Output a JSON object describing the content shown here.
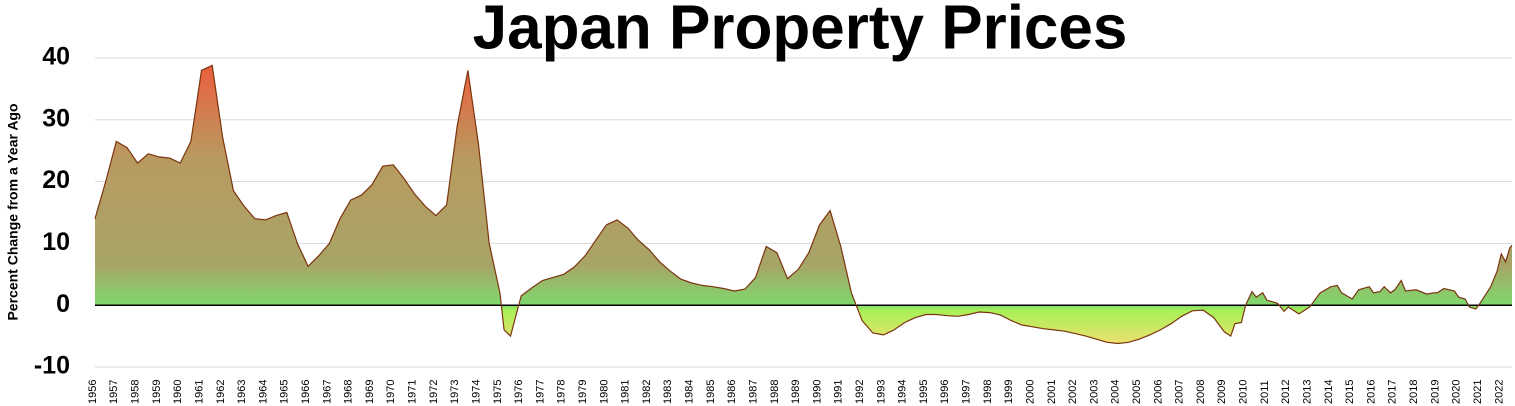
{
  "chart_data": {
    "type": "area",
    "title": "Japan Property Prices",
    "ylabel": "Percent Change from a Year Ago",
    "x": [
      1956,
      1956.5,
      1957,
      1957.5,
      1958,
      1958.5,
      1959,
      1959.5,
      1960,
      1960.5,
      1961,
      1961.5,
      1962,
      1962.5,
      1963,
      1963.5,
      1964,
      1964.5,
      1965,
      1965.5,
      1966,
      1966.5,
      1967,
      1967.5,
      1968,
      1968.5,
      1969,
      1969.5,
      1970,
      1970.5,
      1971,
      1971.5,
      1972,
      1972.5,
      1973,
      1973.5,
      1974,
      1974.5,
      1975,
      1975.2,
      1975.5,
      1976,
      1976.5,
      1977,
      1977.5,
      1978,
      1978.5,
      1979,
      1979.5,
      1980,
      1980.5,
      1981,
      1981.5,
      1982,
      1982.5,
      1983,
      1983.5,
      1984,
      1984.5,
      1985,
      1985.5,
      1986,
      1986.5,
      1987,
      1987.5,
      1988,
      1988.5,
      1989,
      1989.5,
      1990,
      1990.5,
      1991,
      1991.5,
      1992,
      1992.5,
      1993,
      1993.5,
      1994,
      1994.5,
      1995,
      1995.5,
      1996,
      1996.5,
      1997,
      1997.5,
      1998,
      1998.5,
      1999,
      1999.5,
      2000,
      2000.5,
      2001,
      2001.5,
      2002,
      2002.5,
      2003,
      2003.5,
      2004,
      2004.5,
      2005,
      2005.5,
      2006,
      2006.5,
      2007,
      2007.5,
      2008,
      2008.5,
      2009,
      2009.3,
      2009.5,
      2009.8,
      2010,
      2010.3,
      2010.5,
      2010.8,
      2011,
      2011.5,
      2011.8,
      2012,
      2012.5,
      2013,
      2013.5,
      2014,
      2014.3,
      2014.5,
      2015,
      2015.3,
      2015.8,
      2016,
      2016.3,
      2016.5,
      2016.8,
      2017,
      2017.3,
      2017.5,
      2018,
      2018.5,
      2018.8,
      2019,
      2019.3,
      2019.8,
      2020,
      2020.3,
      2020.5,
      2020.8,
      2021,
      2021.5,
      2021.8,
      2022,
      2022.2,
      2022.4,
      2022.5
    ],
    "values": [
      14,
      20,
      26.5,
      25.5,
      23,
      24.5,
      24,
      23.8,
      23,
      26.5,
      38,
      38.8,
      27,
      18.5,
      16,
      14,
      13.8,
      14.5,
      15,
      10,
      6.3,
      8,
      10,
      14,
      17,
      17.8,
      19.5,
      22.5,
      22.7,
      20.5,
      18,
      16,
      14.5,
      16.2,
      29,
      38,
      26,
      10,
      2,
      -4,
      -5,
      1.5,
      2.8,
      4,
      4.5,
      5,
      6.2,
      8,
      10.5,
      13,
      13.8,
      12.5,
      10.5,
      9,
      7,
      5.5,
      4.2,
      3.6,
      3.2,
      3,
      2.7,
      2.3,
      2.6,
      4.5,
      9.5,
      8.5,
      4.3,
      5.8,
      8.5,
      13,
      15.3,
      9.5,
      2,
      -2.5,
      -4.5,
      -4.8,
      -4,
      -2.8,
      -2,
      -1.5,
      -1.5,
      -1.7,
      -1.8,
      -1.5,
      -1.1,
      -1.2,
      -1.6,
      -2.5,
      -3.2,
      -3.5,
      -3.8,
      -4,
      -4.2,
      -4.6,
      -5,
      -5.5,
      -6,
      -6.2,
      -6,
      -5.5,
      -4.8,
      -4,
      -3,
      -1.8,
      -0.9,
      -0.8,
      -2,
      -4.3,
      -5,
      -3,
      -2.8,
      0,
      2.2,
      1.3,
      2,
      0.8,
      0.3,
      -1,
      -0.3,
      -1.4,
      -0.3,
      2,
      3,
      3.2,
      2,
      1,
      2.5,
      3,
      2,
      2.2,
      3,
      2,
      2.5,
      4,
      2.3,
      2.5,
      1.8,
      2,
      2,
      2.7,
      2.3,
      1.3,
      1,
      -0.3,
      -0.6,
      0.3,
      3,
      5.5,
      8.3,
      7,
      9.3,
      9.7
    ],
    "line_color": "#7a3510",
    "xlim": [
      1956,
      2022.5
    ],
    "xticks": [
      1956,
      1957,
      1958,
      1959,
      1960,
      1961,
      1962,
      1963,
      1964,
      1965,
      1966,
      1967,
      1968,
      1969,
      1970,
      1971,
      1972,
      1973,
      1974,
      1975,
      1976,
      1977,
      1978,
      1979,
      1980,
      1981,
      1982,
      1983,
      1984,
      1985,
      1986,
      1987,
      1988,
      1989,
      1990,
      1991,
      1992,
      1993,
      1994,
      1995,
      1996,
      1997,
      1998,
      1999,
      2000,
      2001,
      2002,
      2003,
      2004,
      2005,
      2006,
      2007,
      2008,
      2009,
      2010,
      2011,
      2012,
      2013,
      2014,
      2015,
      2016,
      2017,
      2018,
      2019,
      2020,
      2021,
      2022
    ],
    "ylim": [
      -10,
      40
    ],
    "yticks": [
      -10,
      0,
      10,
      20,
      30,
      40
    ],
    "grid": true
  }
}
